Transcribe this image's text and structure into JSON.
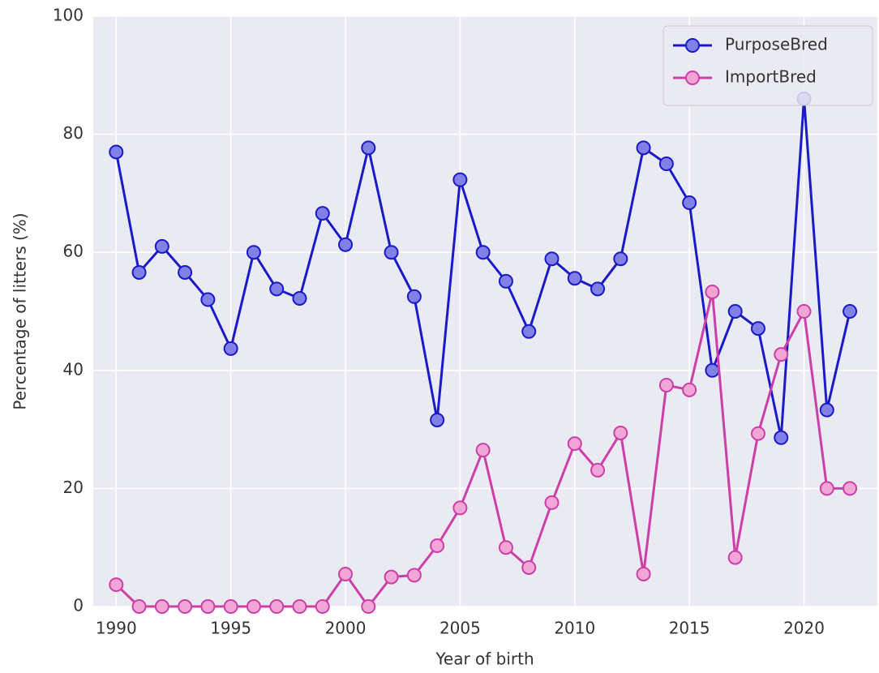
{
  "chart_data": {
    "type": "line",
    "x": [
      1990,
      1991,
      1992,
      1993,
      1994,
      1995,
      1996,
      1997,
      1998,
      1999,
      2000,
      2001,
      2002,
      2003,
      2004,
      2005,
      2006,
      2007,
      2008,
      2009,
      2010,
      2011,
      2012,
      2013,
      2014,
      2015,
      2016,
      2017,
      2018,
      2019,
      2020,
      2021,
      2022
    ],
    "series": [
      {
        "name": "PurposeBred",
        "color": "#1a1ac8",
        "marker_color": "#8080e6",
        "values": [
          77,
          56.6,
          61,
          56.6,
          52,
          43.7,
          60,
          53.8,
          52.2,
          66.6,
          61.3,
          77.7,
          60,
          52.5,
          31.6,
          72.3,
          60,
          55.1,
          46.6,
          58.9,
          55.6,
          53.8,
          58.9,
          77.7,
          75,
          68.4,
          40,
          50,
          47.1,
          28.6,
          86,
          33.3,
          50
        ]
      },
      {
        "name": "ImportBred",
        "color": "#cc3fa8",
        "marker_color": "#f2a6d6",
        "values": [
          3.7,
          0,
          0,
          0,
          0,
          0,
          0,
          0,
          0,
          0,
          5.5,
          0,
          5,
          5.3,
          10.3,
          16.7,
          26.5,
          10,
          6.6,
          17.6,
          27.6,
          23.1,
          29.4,
          5.5,
          37.5,
          36.7,
          53.3,
          8.3,
          29.3,
          42.7,
          50,
          20,
          20
        ]
      }
    ],
    "xlabel": "Year of birth",
    "ylabel": "Percentage of litters (%)",
    "xlim": [
      1989,
      2023.2
    ],
    "ylim": [
      0,
      100
    ],
    "xticks": [
      1990,
      1995,
      2000,
      2005,
      2010,
      2015,
      2020
    ],
    "yticks": [
      0,
      20,
      40,
      60,
      80,
      100
    ],
    "grid": true,
    "legend": "upper right",
    "background": "#eaeaf2"
  }
}
